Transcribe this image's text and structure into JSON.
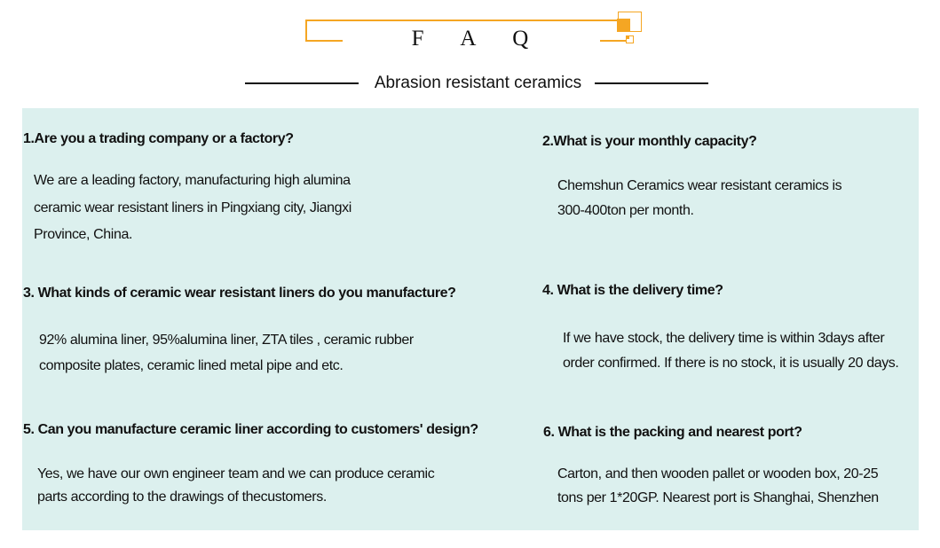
{
  "header": {
    "title": "F A Q",
    "subtitle": "Abrasion resistant ceramics",
    "accent_color": "#f5a623"
  },
  "faq": [
    {
      "question": "1.Are you a trading company or a factory?",
      "answer": [
        "We are a leading factory, manufacturing high alumina",
        "ceramic wear resistant liners in Pingxiang city, Jiangxi",
        "Province, China."
      ]
    },
    {
      "question": "2.What is your monthly capacity?",
      "answer": [
        "Chemshun Ceramics wear resistant ceramics is",
        "300-400ton per month."
      ]
    },
    {
      "question": "3. What kinds of ceramic wear resistant liners do you manufacture?",
      "answer": [
        "92% alumina liner, 95%alumina liner, ZTA tiles , ceramic rubber",
        "composite plates, ceramic lined metal pipe and etc."
      ]
    },
    {
      "question": "4. What is the delivery time?",
      "answer": [
        "If we have stock, the delivery time is within 3days after",
        "order confirmed. If there is no stock, it is usually 20 days."
      ]
    },
    {
      "question": "5. Can you manufacture ceramic liner according to customers' design?",
      "answer": [
        "Yes, we have our own engineer team and we can produce ceramic",
        "parts according to the drawings of thecustomers."
      ]
    },
    {
      "question": "6. What is the packing and nearest port?",
      "answer": [
        "Carton, and then wooden pallet or wooden box, 20-25",
        "tons per 1*20GP. Nearest port is Shanghai, Shenzhen"
      ]
    }
  ]
}
